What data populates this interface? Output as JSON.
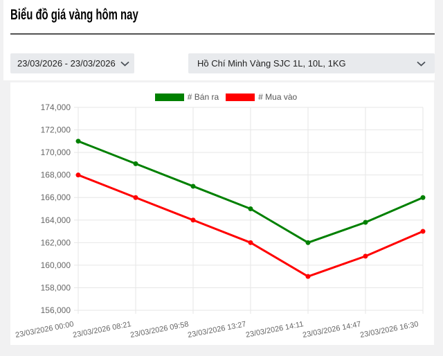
{
  "page": {
    "title": "Biểu đồ giá vàng hôm nay"
  },
  "filters": {
    "date_range": "23/03/2026 - 23/03/2026",
    "product": "Hồ Chí Minh Vàng SJC 1L, 10L, 1KG"
  },
  "chart_data": {
    "type": "line",
    "x": [
      "23/03/2026 00:00",
      "23/03/2026 08:21",
      "23/03/2026 09:58",
      "23/03/2026 13:27",
      "23/03/2026 14:11",
      "23/03/2026 14:47",
      "23/03/2026 16:30"
    ],
    "series": [
      {
        "name": "# Bán ra",
        "color": "#008000",
        "values": [
          171000,
          169000,
          167000,
          165000,
          162000,
          163800,
          166000
        ]
      },
      {
        "name": "# Mua vào",
        "color": "#ff0000",
        "values": [
          168000,
          166000,
          164000,
          162000,
          159000,
          160800,
          163000
        ]
      }
    ],
    "ylim": [
      156000,
      174000
    ],
    "ytick_step": 2000,
    "grid": true,
    "legend_position": "top",
    "grid_color": "#e6e6e6",
    "tick_label_color": "#666666"
  }
}
